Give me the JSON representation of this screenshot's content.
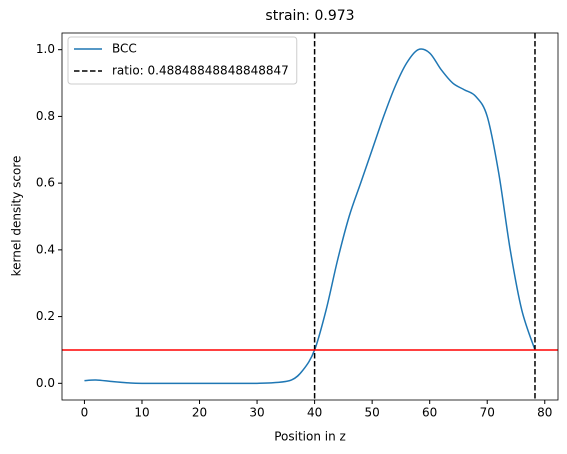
{
  "chart_data": {
    "type": "line",
    "title": "strain: 0.973",
    "xlabel": "Position in z",
    "ylabel": "kernel density score",
    "x": [
      0,
      2,
      5,
      8,
      10,
      15,
      20,
      25,
      30,
      33,
      36,
      38,
      40,
      42,
      44,
      46,
      48,
      50,
      52,
      54,
      56,
      58,
      60,
      62,
      64,
      66,
      68,
      70,
      72,
      74,
      76,
      78.3
    ],
    "series": [
      {
        "name": "BCC",
        "color": "#1f77b4",
        "values": [
          0.008,
          0.01,
          0.005,
          0.001,
          0,
          0,
          0,
          0,
          0,
          0.002,
          0.01,
          0.04,
          0.1,
          0.22,
          0.37,
          0.5,
          0.6,
          0.7,
          0.8,
          0.89,
          0.96,
          1.0,
          0.99,
          0.94,
          0.9,
          0.88,
          0.86,
          0.8,
          0.63,
          0.4,
          0.22,
          0.1
        ]
      }
    ],
    "vlines": {
      "name": "ratio: 0.48848848848848847",
      "color": "#000000",
      "x": [
        40,
        78.3
      ]
    },
    "hline": {
      "value": 0.1,
      "color": "#ff0000"
    },
    "xlim": [
      -3.9,
      82.3
    ],
    "xticks": [
      0,
      10,
      20,
      30,
      40,
      50,
      60,
      70,
      80
    ],
    "ylim": [
      -0.05,
      1.05
    ],
    "yticks": [
      {
        "value": 0,
        "label": "0.0"
      },
      0.2,
      0.4,
      0.6,
      0.8,
      {
        "value": 1,
        "label": "1.0"
      }
    ],
    "legend": "upper left"
  }
}
